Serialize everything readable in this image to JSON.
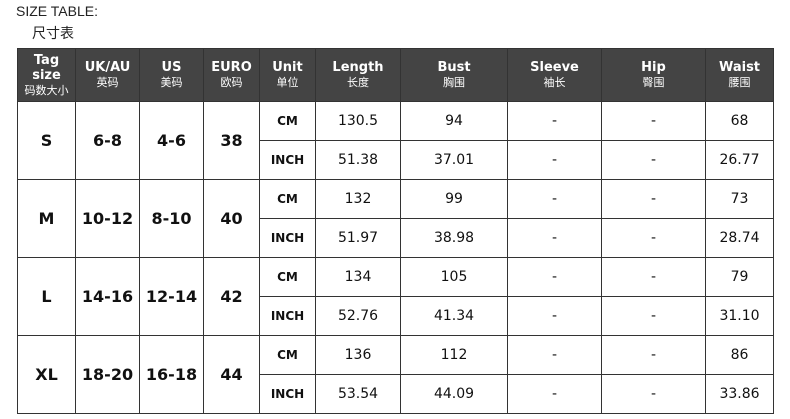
{
  "title": "SIZE TABLE:",
  "subtitle": "尺寸表",
  "headers": [
    {
      "en": "Tag size",
      "cn": "码数大小"
    },
    {
      "en": "UK/AU",
      "cn": "英码"
    },
    {
      "en": "US",
      "cn": "美码"
    },
    {
      "en": "EURO",
      "cn": "欧码"
    },
    {
      "en": "Unit",
      "cn": "单位"
    },
    {
      "en": "Length",
      "cn": "长度"
    },
    {
      "en": "Bust",
      "cn": "胸围"
    },
    {
      "en": "Sleeve",
      "cn": "袖长"
    },
    {
      "en": "Hip",
      "cn": "臀围"
    },
    {
      "en": "Waist",
      "cn": "腰围"
    }
  ],
  "rows": [
    {
      "tag": "S",
      "uk": "6-8",
      "us": "4-6",
      "euro": "38",
      "cm": [
        "CM",
        "130.5",
        "94",
        "-",
        "-",
        "68"
      ],
      "inch": [
        "INCH",
        "51.38",
        "37.01",
        "-",
        "-",
        "26.77"
      ]
    },
    {
      "tag": "M",
      "uk": "10-12",
      "us": "8-10",
      "euro": "40",
      "cm": [
        "CM",
        "132",
        "99",
        "-",
        "-",
        "73"
      ],
      "inch": [
        "INCH",
        "51.97",
        "38.98",
        "-",
        "-",
        "28.74"
      ]
    },
    {
      "tag": "L",
      "uk": "14-16",
      "us": "12-14",
      "euro": "42",
      "cm": [
        "CM",
        "134",
        "105",
        "-",
        "-",
        "79"
      ],
      "inch": [
        "INCH",
        "52.76",
        "41.34",
        "-",
        "-",
        "31.10"
      ]
    },
    {
      "tag": "XL",
      "uk": "18-20",
      "us": "16-18",
      "euro": "44",
      "cm": [
        "CM",
        "136",
        "112",
        "-",
        "-",
        "86"
      ],
      "inch": [
        "INCH",
        "53.54",
        "44.09",
        "-",
        "-",
        "33.86"
      ]
    }
  ]
}
